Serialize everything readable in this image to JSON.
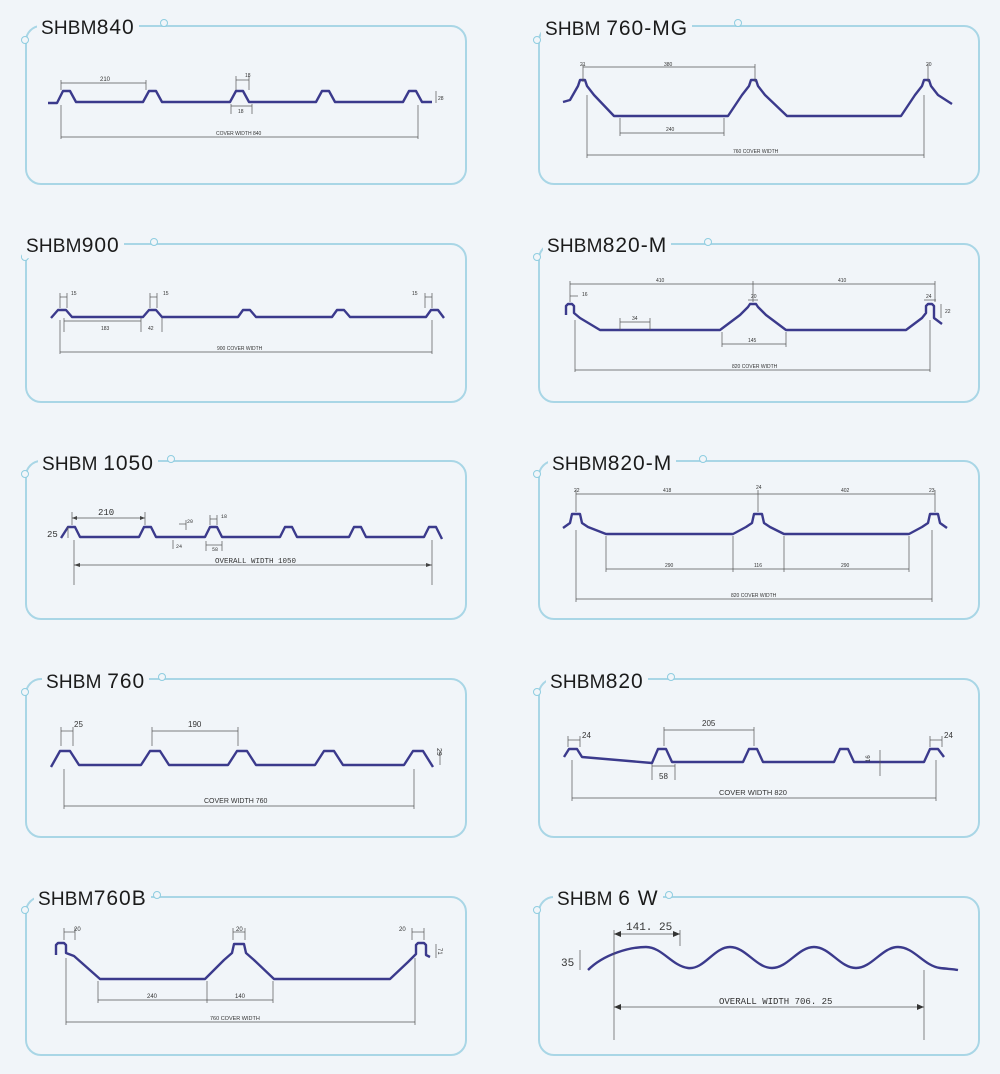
{
  "profiles": [
    {
      "id": "shbm-840",
      "prefix": "SHBM",
      "model": "840",
      "dims": [
        "210",
        "18",
        "18",
        "COVER WIDTH 840",
        "28"
      ]
    },
    {
      "id": "shbm-760-mg",
      "prefix": "SHBM",
      "model": "760-MG",
      "dims": [
        "21",
        "380",
        "20",
        "240",
        "760 COVER WIDTH"
      ]
    },
    {
      "id": "shbm-900",
      "prefix": "SHBM",
      "model": "900",
      "dims": [
        "15",
        "15",
        "15",
        "183",
        "42",
        "900 COVER WIDTH"
      ]
    },
    {
      "id": "shbm-820-m-a",
      "prefix": "SHBM",
      "model": "820-M",
      "dims": [
        "410",
        "410",
        "16",
        "34",
        "20",
        "24",
        "145",
        "820 COVER WIDTH",
        "22"
      ]
    },
    {
      "id": "shbm-1050",
      "prefix": "SHBM",
      "model": "1050",
      "dims": [
        "210",
        "25",
        "20",
        "18",
        "24",
        "58",
        "OVERALL WIDTH 1050"
      ]
    },
    {
      "id": "shbm-820-m-b",
      "prefix": "SHBM",
      "model": "820-M",
      "dims": [
        "22",
        "418",
        "24",
        "402",
        "23",
        "290",
        "116",
        "290",
        "820 COVER WIDTH"
      ]
    },
    {
      "id": "shbm-760",
      "prefix": "SHBM",
      "model": "760",
      "dims": [
        "25",
        "190",
        "29",
        "COVER WIDTH 760"
      ]
    },
    {
      "id": "shbm-820",
      "prefix": "SHBM",
      "model": "820",
      "dims": [
        "24",
        "205",
        "24",
        "58",
        "16",
        "COVER WIDTH 820"
      ]
    },
    {
      "id": "shbm-760b",
      "prefix": "SHBM",
      "model": "760B",
      "dims": [
        "20",
        "20",
        "20",
        "71",
        "240",
        "140",
        "760 COVER WIDTH"
      ]
    },
    {
      "id": "shbm-6w",
      "prefix": "SHBM",
      "model": "6 W",
      "dims": [
        "141. 25",
        "35",
        "OVERALL WIDTH 706. 25"
      ]
    }
  ],
  "colors": {
    "panel_border": "#a9d6e6",
    "profile_line": "#3b3a8c",
    "background": "#f1f5f9"
  }
}
